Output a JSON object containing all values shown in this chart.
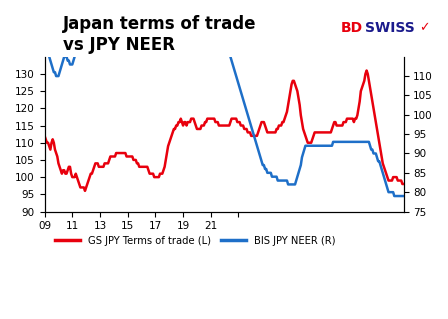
{
  "title": "Japan terms of trade\nvs JPY NEER",
  "title_fontsize": 12,
  "legend_labels": [
    "GS JPY Terms of trade (L)",
    "BIS JPY NEER (R)"
  ],
  "line_colors": [
    "#e8000d",
    "#1e6fc8"
  ],
  "left_ylim": [
    90,
    135
  ],
  "right_ylim": [
    75,
    115
  ],
  "left_yticks": [
    90,
    95,
    100,
    105,
    110,
    115,
    120,
    125,
    130
  ],
  "right_yticks": [
    75,
    80,
    85,
    90,
    95,
    100,
    105,
    110
  ],
  "xtick_positions": [
    0,
    24,
    48,
    72,
    96,
    120,
    144,
    168
  ],
  "xtick_labels": [
    "09",
    "11",
    "13",
    "15",
    "17",
    "19",
    "21",
    ""
  ],
  "background_color": "#ffffff",
  "logo_bd": "BD",
  "logo_swiss": "SWISS",
  "logo_bd_color": "#e8000d",
  "logo_swiss_color": "#1a1a8c",
  "terms_of_trade": [
    112,
    111,
    110,
    110,
    109,
    108,
    110,
    111,
    110,
    108,
    107,
    106,
    104,
    103,
    102,
    101,
    102,
    102,
    101,
    101,
    102,
    103,
    103,
    101,
    100,
    100,
    100,
    101,
    100,
    99,
    98,
    97,
    97,
    97,
    97,
    96,
    97,
    98,
    99,
    100,
    101,
    101,
    102,
    103,
    104,
    104,
    104,
    103,
    103,
    103,
    103,
    103,
    104,
    104,
    104,
    104,
    105,
    106,
    106,
    106,
    106,
    106,
    107,
    107,
    107,
    107,
    107,
    107,
    107,
    107,
    107,
    106,
    106,
    106,
    106,
    106,
    106,
    105,
    105,
    105,
    104,
    104,
    103,
    103,
    103,
    103,
    103,
    103,
    103,
    103,
    102,
    101,
    101,
    101,
    101,
    100,
    100,
    100,
    100,
    100,
    101,
    101,
    101,
    102,
    103,
    105,
    107,
    109,
    110,
    111,
    112,
    113,
    114,
    114,
    115,
    115,
    116,
    116,
    117,
    116,
    115,
    116,
    116,
    115,
    116,
    116,
    116,
    117,
    117,
    117,
    116,
    115,
    114,
    114,
    114,
    114,
    115,
    115,
    115,
    116,
    116,
    117,
    117,
    117,
    117,
    117,
    117,
    117,
    116,
    116,
    116,
    115,
    115,
    115,
    115,
    115,
    115,
    115,
    115,
    115,
    115,
    116,
    117,
    117,
    117,
    117,
    117,
    116,
    116,
    116,
    115,
    115,
    115,
    114,
    114,
    114,
    113,
    113,
    113,
    112,
    112,
    112,
    112,
    112,
    112,
    113,
    114,
    115,
    116,
    116,
    116,
    115,
    114,
    113,
    113,
    113,
    113,
    113,
    113,
    113,
    113,
    114,
    114,
    115,
    115,
    115,
    116,
    116,
    117,
    118,
    119,
    121,
    123,
    125,
    127,
    128,
    128,
    127,
    126,
    125,
    123,
    121,
    118,
    116,
    114,
    113,
    112,
    111,
    110,
    110,
    110,
    110,
    111,
    112,
    113,
    113,
    113,
    113,
    113,
    113,
    113,
    113,
    113,
    113,
    113,
    113,
    113,
    113,
    113,
    114,
    115,
    116,
    116,
    115,
    115,
    115,
    115,
    115,
    115,
    116,
    116,
    116,
    117,
    117,
    117,
    117,
    117,
    117,
    116,
    117,
    117,
    118,
    120,
    122,
    125,
    126,
    127,
    128,
    130,
    131,
    130,
    128,
    126,
    124,
    122,
    120,
    118,
    116,
    114,
    112,
    110,
    108,
    106,
    104,
    103,
    102,
    101,
    100,
    99,
    99,
    99,
    99,
    100,
    100,
    100,
    100,
    99,
    99,
    99,
    99,
    98,
    98
  ],
  "jpy_neer": [
    120,
    119,
    117,
    116,
    115,
    114,
    113,
    112,
    111,
    111,
    110,
    110,
    110,
    111,
    112,
    113,
    114,
    115,
    115,
    115,
    114,
    114,
    113,
    113,
    113,
    114,
    115,
    116,
    116,
    117,
    117,
    118,
    119,
    120,
    120,
    121,
    122,
    123,
    124,
    124,
    124,
    124,
    123,
    123,
    122,
    122,
    122,
    122,
    122,
    122,
    122,
    122,
    122,
    122,
    122,
    122,
    121,
    121,
    121,
    121,
    121,
    121,
    121,
    121,
    121,
    121,
    121,
    121,
    121,
    121,
    121,
    121,
    121,
    121,
    121,
    121,
    121,
    121,
    121,
    121,
    121,
    121,
    121,
    121,
    121,
    121,
    121,
    121,
    121,
    121,
    121,
    121,
    121,
    121,
    121,
    121,
    121,
    121,
    121,
    121,
    121,
    121,
    121,
    121,
    121,
    121,
    122,
    123,
    124,
    125,
    126,
    127,
    128,
    129,
    130,
    131,
    131,
    131,
    131,
    131,
    131,
    131,
    131,
    131,
    131,
    131,
    131,
    131,
    131,
    131,
    130,
    130,
    130,
    130,
    130,
    130,
    130,
    130,
    130,
    130,
    130,
    130,
    130,
    130,
    130,
    130,
    130,
    129,
    128,
    127,
    126,
    125,
    124,
    123,
    122,
    121,
    120,
    119,
    118,
    117,
    116,
    115,
    114,
    113,
    112,
    111,
    110,
    109,
    108,
    107,
    106,
    105,
    104,
    103,
    102,
    101,
    100,
    99,
    98,
    97,
    96,
    95,
    94,
    93,
    92,
    91,
    90,
    89,
    88,
    87,
    87,
    86,
    86,
    85,
    85,
    85,
    85,
    84,
    84,
    84,
    84,
    84,
    83,
    83,
    83,
    83,
    83,
    83,
    83,
    83,
    83,
    82,
    82,
    82,
    82,
    82,
    82,
    82,
    83,
    84,
    85,
    86,
    87,
    89,
    90,
    91,
    92,
    92,
    92,
    92,
    92,
    92,
    92,
    92,
    92,
    92,
    92,
    92,
    92,
    92,
    92,
    92,
    92,
    92,
    92,
    92,
    92,
    92,
    92,
    92,
    93,
    93,
    93,
    93,
    93,
    93,
    93,
    93,
    93,
    93,
    93,
    93,
    93,
    93,
    93,
    93,
    93,
    93,
    93,
    93,
    93,
    93,
    93,
    93,
    93,
    93,
    93,
    93,
    93,
    93,
    93,
    93,
    92,
    91,
    91,
    90,
    90,
    90,
    89,
    88,
    88,
    87,
    86,
    85,
    84,
    83,
    82,
    81,
    80,
    80,
    80,
    80,
    80,
    79,
    79,
    79,
    79,
    79,
    79,
    79,
    79,
    79
  ]
}
